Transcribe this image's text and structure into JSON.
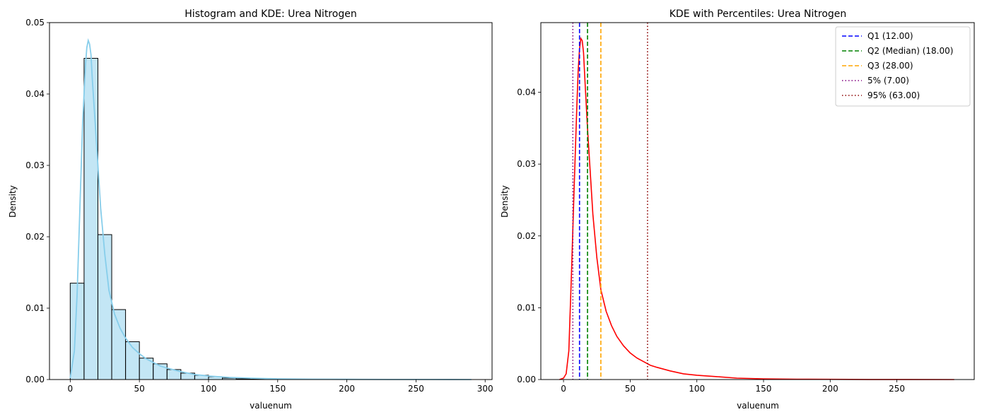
{
  "chart_data": [
    {
      "type": "bar",
      "title": "Histogram and KDE: Urea Nitrogen",
      "xlabel": "valuenum",
      "ylabel": "Density",
      "xlim": [
        -15,
        305
      ],
      "ylim": [
        0,
        0.05
      ],
      "xticks": [
        0,
        50,
        100,
        150,
        200,
        250,
        300
      ],
      "yticks": [
        0.0,
        0.01,
        0.02,
        0.03,
        0.04,
        0.05
      ],
      "ytick_labels": [
        "0.00",
        "0.01",
        "0.02",
        "0.03",
        "0.04",
        "0.05"
      ],
      "grid": false,
      "histogram": {
        "bin_width": 10,
        "bin_starts": [
          0,
          10,
          20,
          30,
          40,
          50,
          60,
          70,
          80,
          90,
          100,
          110,
          120,
          130,
          140,
          150,
          160,
          170,
          180,
          190,
          200,
          210,
          220,
          230,
          240,
          250,
          260,
          270,
          280
        ],
        "values": [
          0.0135,
          0.045,
          0.0203,
          0.0098,
          0.0053,
          0.003,
          0.0022,
          0.0014,
          0.0009,
          0.0006,
          0.0004,
          0.0002,
          0.0001,
          5e-05,
          3e-05,
          2e-05,
          1e-05,
          1e-05,
          1e-05,
          0,
          0,
          0,
          0,
          0,
          0,
          0,
          0,
          0,
          0
        ],
        "fill_color": "#87ceeb",
        "edge_color": "#000000"
      },
      "kde": {
        "color": "#87ceeb",
        "x": [
          0,
          3,
          5,
          7,
          9,
          11,
          12,
          13,
          14,
          15,
          16,
          18,
          20,
          22,
          25,
          28,
          32,
          36,
          40,
          45,
          50,
          55,
          60,
          65,
          70,
          80,
          90,
          100,
          115,
          130,
          150,
          175,
          200,
          230,
          260,
          290
        ],
        "y": [
          0.0002,
          0.004,
          0.012,
          0.024,
          0.036,
          0.044,
          0.0465,
          0.0475,
          0.047,
          0.0455,
          0.042,
          0.036,
          0.03,
          0.024,
          0.0175,
          0.0125,
          0.0092,
          0.0072,
          0.0058,
          0.0045,
          0.0036,
          0.0029,
          0.0024,
          0.0019,
          0.0016,
          0.0011,
          0.0007,
          0.0005,
          0.0003,
          0.0002,
          0.0001,
          5e-05,
          3e-05,
          1e-05,
          1e-05,
          0.0
        ]
      }
    },
    {
      "type": "line",
      "title": "KDE with Percentiles: Urea Nitrogen",
      "xlabel": "valuenum",
      "ylabel": "Density",
      "xlim": [
        -17,
        308
      ],
      "ylim": [
        0,
        0.0497
      ],
      "xticks": [
        0,
        50,
        100,
        150,
        200,
        250
      ],
      "yticks": [
        0.0,
        0.01,
        0.02,
        0.03,
        0.04
      ],
      "ytick_labels": [
        "0.00",
        "0.01",
        "0.02",
        "0.03",
        "0.04"
      ],
      "grid": false,
      "legend_position": "top-right",
      "series": [
        {
          "color": "#ff0000",
          "x": [
            -3,
            0,
            2,
            4,
            6,
            8,
            10,
            11,
            12,
            13,
            14,
            15,
            16,
            18,
            20,
            22,
            25,
            28,
            32,
            36,
            40,
            45,
            50,
            55,
            60,
            65,
            70,
            80,
            90,
            100,
            115,
            130,
            150,
            175,
            200,
            230,
            260,
            293
          ],
          "y": [
            0.0,
            0.0002,
            0.0008,
            0.004,
            0.015,
            0.027,
            0.038,
            0.043,
            0.046,
            0.0475,
            0.0472,
            0.0455,
            0.042,
            0.035,
            0.029,
            0.023,
            0.017,
            0.0125,
            0.0095,
            0.0075,
            0.006,
            0.0047,
            0.0037,
            0.003,
            0.0025,
            0.002,
            0.0017,
            0.0012,
            0.0008,
            0.0006,
            0.0004,
            0.0002,
            0.0001,
            5e-05,
            3e-05,
            1e-05,
            1e-05,
            0.0
          ]
        }
      ],
      "vlines": [
        {
          "label": "Q1 (12.00)",
          "x": 12,
          "color": "#0000ff",
          "style": "dashed"
        },
        {
          "label": "Q2 (Median) (18.00)",
          "x": 18,
          "color": "#008000",
          "style": "dashed"
        },
        {
          "label": "Q3 (28.00)",
          "x": 28,
          "color": "#ffa500",
          "style": "dashed"
        },
        {
          "label": "5% (7.00)",
          "x": 7,
          "color": "#800080",
          "style": "dotted"
        },
        {
          "label": "95% (63.00)",
          "x": 63,
          "color": "#8b0000",
          "style": "dotted"
        }
      ]
    }
  ]
}
